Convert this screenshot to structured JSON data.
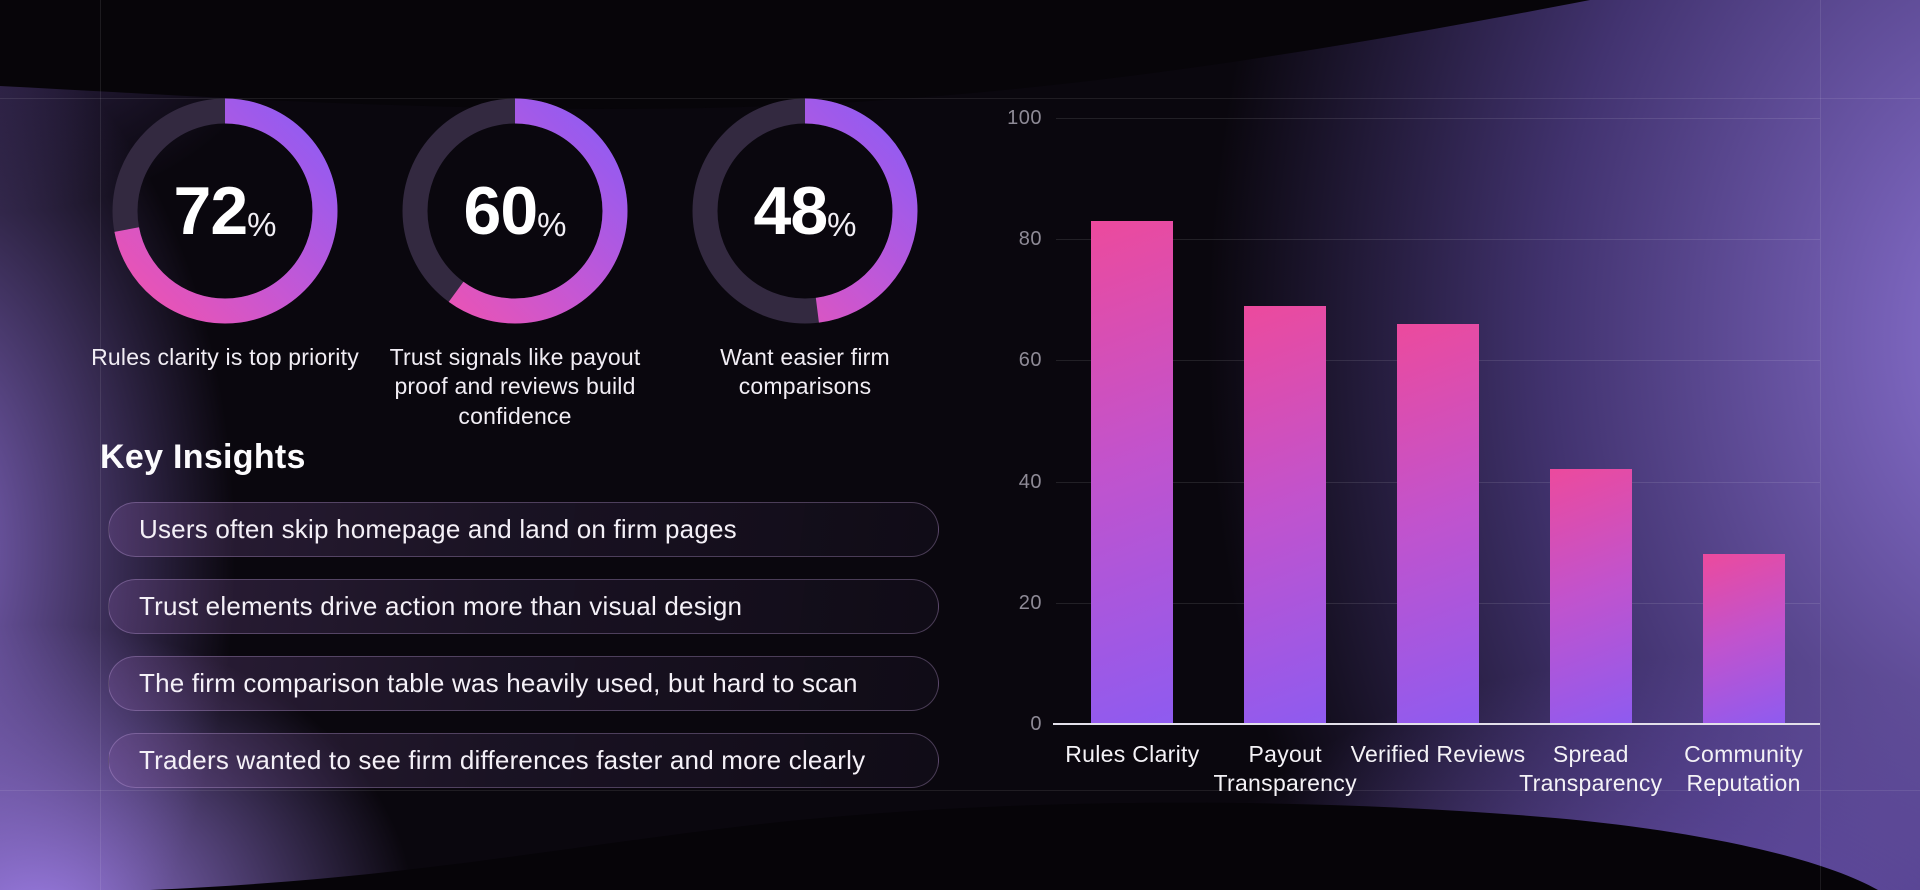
{
  "donuts": [
    {
      "value": "72",
      "unit": "%",
      "percent": 72,
      "caption": "Rules clarity is top priority"
    },
    {
      "value": "60",
      "unit": "%",
      "percent": 60,
      "caption": "Trust signals like payout proof and reviews build confidence"
    },
    {
      "value": "48",
      "unit": "%",
      "percent": 48,
      "caption": "Want easier firm comparisons"
    }
  ],
  "insights": {
    "title": "Key Insights",
    "items": [
      "Users often skip homepage and land on firm pages",
      "Trust elements drive action more than visual design",
      "The firm comparison table was heavily used, but hard to scan",
      "Traders wanted to see firm differences faster and more clearly"
    ]
  },
  "chart_data": {
    "type": "bar",
    "categories": [
      "Rules Clarity",
      "Payout Transparency",
      "Verified Reviews",
      "Spread Transparency",
      "Community Reputation"
    ],
    "values": [
      83,
      69,
      66,
      42,
      28
    ],
    "title": "",
    "xlabel": "",
    "ylabel": "",
    "ylim": [
      0,
      100
    ],
    "yticks": [
      0,
      20,
      40,
      60,
      80,
      100
    ],
    "grid": true,
    "legend": false
  },
  "colors": {
    "accent_pink": "#ec4a9d",
    "accent_violet": "#8e5bf0",
    "donut_track": "#332940",
    "glow_purple": "#9478e0",
    "text_primary": "#f4f0f7",
    "text_muted": "#8e8a96"
  }
}
